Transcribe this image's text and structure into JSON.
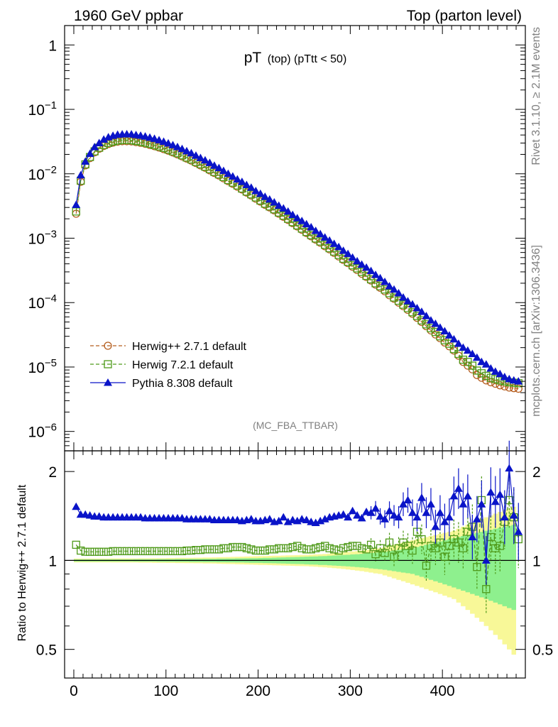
{
  "header": {
    "left": "1960 GeV ppbar",
    "right": "Top (parton level)"
  },
  "side": {
    "rivet": "Rivet 3.1.10, ≥ 2.1M events",
    "mcplots": "mcplots.cern.ch [arXiv:1306.3436]"
  },
  "chart_data": {
    "type": "line",
    "title_main": "pT",
    "title_sub": "(top) (pTtt < 50)",
    "analysis_tag": "(MC_FBA_TTBAR)",
    "ylabel_ratio": "Ratio to Herwig++ 2.7.1 default",
    "xlim": [
      -10,
      490
    ],
    "ylim_main": [
      5e-07,
      2
    ],
    "ylim_ratio": [
      0.4,
      2.35
    ],
    "yscale_main": "log",
    "yscale_ratio": "log",
    "x_ticks": [
      0,
      100,
      200,
      300,
      400
    ],
    "x_tick_labels": [
      "0",
      "100",
      "200",
      "300",
      "400"
    ],
    "y_ticks_main": [
      1,
      0.1,
      0.01,
      0.001,
      0.0001,
      1e-05,
      1e-06
    ],
    "y_tick_labels_main": [
      {
        "base": "1",
        "exp": ""
      },
      {
        "base": "10",
        "exp": "−1"
      },
      {
        "base": "10",
        "exp": "−2"
      },
      {
        "base": "10",
        "exp": "−3"
      },
      {
        "base": "10",
        "exp": "−4"
      },
      {
        "base": "10",
        "exp": "−5"
      },
      {
        "base": "10",
        "exp": "−6"
      }
    ],
    "y_ticks_ratio": [
      2,
      1,
      0.5
    ],
    "y_tick_labels_ratio": [
      "2",
      "1",
      "0.5"
    ],
    "legend_position": "lower-left",
    "colors": {
      "herwigpp": "#b55d1e",
      "herwig7": "#4f9a1a",
      "pythia": "#0a14c8",
      "band_yellow": "#f8f898",
      "band_green": "#8ef08e"
    },
    "series": [
      {
        "name": "Herwig++ 2.7.1 default",
        "marker": "open-circle",
        "line": "dashed",
        "main": {
          "x_start": 2.5,
          "x_step": 5,
          "y": [
            0.0024,
            0.0075,
            0.0135,
            0.0175,
            0.0215,
            0.0245,
            0.027,
            0.029,
            0.0305,
            0.0315,
            0.032,
            0.032,
            0.0318,
            0.031,
            0.0302,
            0.0292,
            0.028,
            0.0268,
            0.0255,
            0.0242,
            0.0228,
            0.0214,
            0.02,
            0.0186,
            0.0172,
            0.016,
            0.0147,
            0.0135,
            0.0124,
            0.0113,
            0.0103,
            0.0094,
            0.0085,
            0.0077,
            0.007,
            0.0063,
            0.0057,
            0.0051,
            0.0046,
            0.0041,
            0.0037,
            0.0033,
            0.003,
            0.0027,
            0.0024,
            0.00215,
            0.00192,
            0.00171,
            0.00152,
            0.00135,
            0.0012,
            0.00107,
            0.00095,
            0.00085,
            0.00075,
            0.00067,
            0.00059,
            0.00052,
            0.00046,
            0.00041,
            0.00036,
            0.00032,
            0.00028,
            0.00025,
            0.00022,
            0.00019,
            0.00017,
            0.00015,
            0.00013,
            0.000115,
            0.0001,
            8.8e-05,
            7.7e-05,
            6.7e-05,
            5.8e-05,
            5e-05,
            4.3e-05,
            3.7e-05,
            3.2e-05,
            2.8e-05,
            2.4e-05,
            2.1e-05,
            1.8e-05,
            1.5e-05,
            1.2e-05,
            1.05e-05,
            9.2e-06,
            7.5e-06,
            6.8e-06,
            6.2e-06,
            5.8e-06,
            5.5e-06,
            5.2e-06,
            5e-06,
            4.8e-06,
            4.7e-06,
            4.6e-06
          ]
        },
        "ratio": {
          "y_const": 1.0
        }
      },
      {
        "name": "Herwig 7.2.1 default",
        "marker": "open-square",
        "line": "dashed",
        "main": {
          "x_start": 2.5,
          "x_step": 5,
          "y": [
            0.0026,
            0.0078,
            0.014,
            0.0182,
            0.0223,
            0.0254,
            0.028,
            0.0301,
            0.0317,
            0.0328,
            0.0333,
            0.0333,
            0.0331,
            0.0323,
            0.0315,
            0.0304,
            0.0292,
            0.0279,
            0.0266,
            0.0252,
            0.0238,
            0.0223,
            0.0209,
            0.0194,
            0.0179,
            0.0167,
            0.0153,
            0.0141,
            0.0129,
            0.0118,
            0.0107,
            0.0098,
            0.0089,
            0.008,
            0.0073,
            0.0066,
            0.0059,
            0.0053,
            0.0048,
            0.0043,
            0.00385,
            0.00344,
            0.00312,
            0.00281,
            0.0025,
            0.00224,
            0.002,
            0.00178,
            0.00158,
            0.00141,
            0.00125,
            0.00112,
            0.00099,
            0.00089,
            0.00079,
            0.0007,
            0.00062,
            0.00055,
            0.00048,
            0.00043,
            0.00038,
            0.00034,
            0.0003,
            0.00026,
            0.00023,
            0.0002,
            0.00018,
            0.00016,
            0.00014,
            0.00012,
            0.000107,
            9.3e-05,
            8.2e-05,
            7.1e-05,
            6.2e-05,
            5.3e-05,
            4.6e-05,
            4e-05,
            3.5e-05,
            3e-05,
            2.6e-05,
            2.3e-05,
            1.9e-05,
            1.6e-05,
            1.3e-05,
            1.2e-05,
            1.05e-05,
            8.8e-06,
            8e-06,
            7.3e-06,
            6.8e-06,
            6.5e-06,
            6.2e-06,
            6e-06,
            5.8e-06,
            5.7e-06,
            5.6e-06
          ]
        },
        "ratio": {
          "x_start": 2.5,
          "x_step": 5,
          "y": [
            1.13,
            1.08,
            1.07,
            1.07,
            1.07,
            1.07,
            1.07,
            1.07,
            1.075,
            1.075,
            1.075,
            1.075,
            1.075,
            1.075,
            1.075,
            1.075,
            1.075,
            1.075,
            1.075,
            1.075,
            1.075,
            1.075,
            1.075,
            1.075,
            1.08,
            1.08,
            1.085,
            1.085,
            1.09,
            1.09,
            1.09,
            1.09,
            1.1,
            1.1,
            1.11,
            1.11,
            1.11,
            1.1,
            1.09,
            1.08,
            1.08,
            1.08,
            1.09,
            1.09,
            1.1,
            1.1,
            1.1,
            1.11,
            1.12,
            1.1,
            1.09,
            1.09,
            1.1,
            1.11,
            1.12,
            1.1,
            1.09,
            1.08,
            1.1,
            1.11,
            1.12,
            1.12,
            1.1,
            1.09,
            1.13,
            1.05,
            1.1,
            1.06,
            1.15,
            1.03,
            1.1,
            1.15,
            1.12,
            1.08,
            1.25,
            1.18,
            0.96,
            1.12,
            1.1,
            1.15,
            1.03,
            1.12,
            1.18,
            1.15,
            1.1,
            1.25,
            1.3,
            0.95,
            1.6,
            0.8,
            1.2,
            1.1,
            1.12,
            1.35,
            1.6,
            1.4,
            1.18
          ]
        }
      },
      {
        "name": "Pythia 8.308 default",
        "marker": "filled-triangle",
        "line": "solid",
        "main": {
          "x_start": 2.5,
          "x_step": 5,
          "y": [
            0.0033,
            0.0095,
            0.0155,
            0.0205,
            0.026,
            0.03,
            0.034,
            0.037,
            0.039,
            0.0405,
            0.041,
            0.0412,
            0.041,
            0.04,
            0.0392,
            0.038,
            0.0365,
            0.035,
            0.0333,
            0.0315,
            0.0297,
            0.0279,
            0.0261,
            0.0243,
            0.0225,
            0.0209,
            0.0192,
            0.0176,
            0.0162,
            0.0148,
            0.0134,
            0.0123,
            0.0111,
            0.01,
            0.0091,
            0.0082,
            0.0075,
            0.0067,
            0.0061,
            0.0054,
            0.0049,
            0.0044,
            0.004,
            0.0036,
            0.0032,
            0.0029,
            0.0026,
            0.0023,
            0.00205,
            0.00185,
            0.00165,
            0.00148,
            0.0013,
            0.00116,
            0.00103,
            0.00092,
            0.00082,
            0.00073,
            0.00064,
            0.00057,
            0.0005,
            0.00044,
            0.00039,
            0.00035,
            0.00031,
            0.00027,
            0.00024,
            0.00021,
            0.00018,
            0.00016,
            0.00014,
            0.00012,
            0.000105,
            9.4e-05,
            8.2e-05,
            7.2e-05,
            6.2e-05,
            5.3e-05,
            4.7e-05,
            4.1e-05,
            3.6e-05,
            3.1e-05,
            2.7e-05,
            2.3e-05,
            2e-05,
            1.8e-05,
            1.6e-05,
            1.4e-05,
            1.2e-05,
            1.1e-05,
            9.5e-06,
            8.5e-06,
            7.8e-06,
            7e-06,
            6.5e-06,
            6.2e-06,
            6e-06
          ]
        },
        "ratio": {
          "x_start": 2.5,
          "x_step": 5,
          "y": [
            1.52,
            1.43,
            1.43,
            1.42,
            1.41,
            1.41,
            1.4,
            1.4,
            1.4,
            1.4,
            1.4,
            1.4,
            1.4,
            1.4,
            1.4,
            1.39,
            1.39,
            1.39,
            1.39,
            1.39,
            1.39,
            1.39,
            1.39,
            1.39,
            1.38,
            1.38,
            1.38,
            1.38,
            1.38,
            1.38,
            1.37,
            1.37,
            1.37,
            1.37,
            1.37,
            1.37,
            1.36,
            1.37,
            1.38,
            1.36,
            1.36,
            1.37,
            1.38,
            1.35,
            1.36,
            1.4,
            1.35,
            1.37,
            1.36,
            1.38,
            1.37,
            1.35,
            1.34,
            1.36,
            1.38,
            1.4,
            1.41,
            1.42,
            1.43,
            1.4,
            1.47,
            1.42,
            1.39,
            1.46,
            1.45,
            1.5,
            1.41,
            1.38,
            1.47,
            1.42,
            1.4,
            1.55,
            1.6,
            1.45,
            1.4,
            1.63,
            1.45,
            1.55,
            1.3,
            1.45,
            1.35,
            1.4,
            1.65,
            1.75,
            1.55,
            1.65,
            1.2,
            1.38,
            1.55,
            1.0,
            1.7,
            1.58,
            1.67,
            1.4,
            2.05,
            1.42,
            1.25
          ]
        }
      }
    ],
    "bands": {
      "x_start": 0,
      "x_step": 5,
      "yellow_half_width": [
        0.015,
        0.015,
        0.015,
        0.015,
        0.015,
        0.015,
        0.015,
        0.015,
        0.016,
        0.016,
        0.016,
        0.016,
        0.016,
        0.016,
        0.017,
        0.017,
        0.017,
        0.018,
        0.018,
        0.018,
        0.019,
        0.019,
        0.02,
        0.02,
        0.021,
        0.021,
        0.022,
        0.022,
        0.023,
        0.023,
        0.024,
        0.025,
        0.026,
        0.027,
        0.028,
        0.029,
        0.03,
        0.031,
        0.032,
        0.033,
        0.034,
        0.035,
        0.036,
        0.037,
        0.038,
        0.039,
        0.04,
        0.041,
        0.042,
        0.043,
        0.044,
        0.046,
        0.048,
        0.05,
        0.052,
        0.055,
        0.058,
        0.061,
        0.064,
        0.068,
        0.072,
        0.076,
        0.08,
        0.085,
        0.09,
        0.096,
        0.1,
        0.11,
        0.12,
        0.13,
        0.14,
        0.15,
        0.16,
        0.17,
        0.18,
        0.19,
        0.2,
        0.21,
        0.22,
        0.23,
        0.24,
        0.25,
        0.26,
        0.28,
        0.3,
        0.32,
        0.34,
        0.36,
        0.38,
        0.4,
        0.42,
        0.44,
        0.46,
        0.48,
        0.5,
        0.52
      ],
      "green_half_width": [
        0.008,
        0.008,
        0.008,
        0.008,
        0.008,
        0.008,
        0.008,
        0.008,
        0.008,
        0.008,
        0.008,
        0.008,
        0.008,
        0.009,
        0.009,
        0.009,
        0.009,
        0.009,
        0.01,
        0.01,
        0.01,
        0.01,
        0.011,
        0.011,
        0.011,
        0.012,
        0.012,
        0.012,
        0.013,
        0.013,
        0.013,
        0.014,
        0.014,
        0.015,
        0.015,
        0.016,
        0.016,
        0.017,
        0.018,
        0.018,
        0.019,
        0.02,
        0.021,
        0.022,
        0.023,
        0.024,
        0.025,
        0.026,
        0.027,
        0.028,
        0.03,
        0.031,
        0.032,
        0.034,
        0.035,
        0.037,
        0.039,
        0.041,
        0.043,
        0.045,
        0.048,
        0.05,
        0.053,
        0.056,
        0.06,
        0.063,
        0.066,
        0.07,
        0.075,
        0.08,
        0.085,
        0.09,
        0.095,
        0.1,
        0.11,
        0.12,
        0.13,
        0.14,
        0.15,
        0.16,
        0.17,
        0.18,
        0.19,
        0.2,
        0.21,
        0.22,
        0.23,
        0.24,
        0.25,
        0.26,
        0.27,
        0.28,
        0.29,
        0.3,
        0.31,
        0.32
      ]
    }
  }
}
